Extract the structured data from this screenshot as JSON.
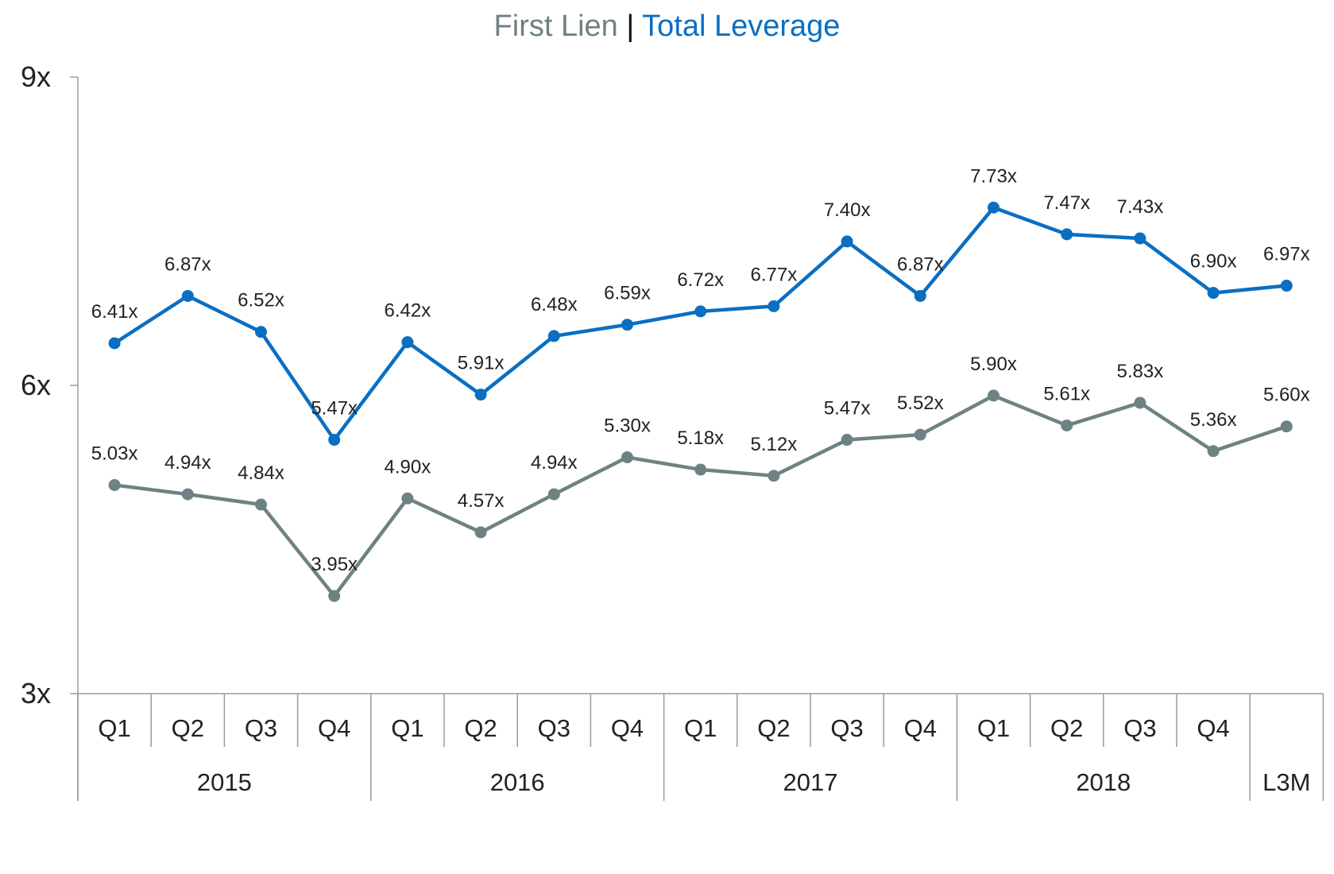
{
  "chart_data": {
    "type": "line",
    "title_parts": [
      {
        "text": "First Lien",
        "color": "#6f8283"
      },
      {
        "text": " | ",
        "color": "#111111"
      },
      {
        "text": "Total Leverage",
        "color": "#0a6fc2"
      }
    ],
    "y_ticks": [
      "3x",
      "6x",
      "9x"
    ],
    "ylim": [
      3,
      9
    ],
    "categories": [
      "Q1",
      "Q2",
      "Q3",
      "Q4",
      "Q1",
      "Q2",
      "Q3",
      "Q4",
      "Q1",
      "Q2",
      "Q3",
      "Q4",
      "Q1",
      "Q2",
      "Q3",
      "Q4",
      "L3M"
    ],
    "quarter_labels": [
      "Q1",
      "Q2",
      "Q3",
      "Q4",
      "Q1",
      "Q2",
      "Q3",
      "Q4",
      "Q1",
      "Q2",
      "Q3",
      "Q4",
      "Q1",
      "Q2",
      "Q3",
      "Q4",
      ""
    ],
    "year_groups": [
      {
        "label": "2015",
        "count": 4
      },
      {
        "label": "2016",
        "count": 4
      },
      {
        "label": "2017",
        "count": 4
      },
      {
        "label": "2018",
        "count": 4
      },
      {
        "label": "L3M",
        "count": 1
      }
    ],
    "series": [
      {
        "name": "Total Leverage",
        "color": "#0a6fc2",
        "values": [
          6.41,
          6.87,
          6.52,
          5.47,
          6.42,
          5.91,
          6.48,
          6.59,
          6.72,
          6.77,
          7.4,
          6.87,
          7.73,
          7.47,
          7.43,
          6.9,
          6.97
        ],
        "labels": [
          "6.41x",
          "6.87x",
          "6.52x",
          "5.47x",
          "6.42x",
          "5.91x",
          "6.48x",
          "6.59x",
          "6.72x",
          "6.77x",
          "7.40x",
          "6.87x",
          "7.73x",
          "7.47x",
          "7.43x",
          "6.90x",
          "6.97x"
        ]
      },
      {
        "name": "First Lien",
        "color": "#6f8283",
        "values": [
          5.03,
          4.94,
          4.84,
          3.95,
          4.9,
          4.57,
          4.94,
          5.3,
          5.18,
          5.12,
          5.47,
          5.52,
          5.9,
          5.61,
          5.83,
          5.36,
          5.6
        ],
        "labels": [
          "5.03x",
          "4.94x",
          "4.84x",
          "3.95x",
          "4.90x",
          "4.57x",
          "4.94x",
          "5.30x",
          "5.18x",
          "5.12x",
          "5.47x",
          "5.52x",
          "5.90x",
          "5.61x",
          "5.83x",
          "5.36x",
          "5.60x"
        ]
      }
    ],
    "grid": false,
    "legend": "none"
  }
}
